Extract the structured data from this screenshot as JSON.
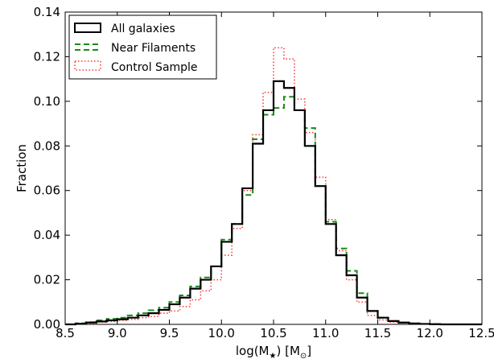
{
  "chart_data": {
    "type": "histogram",
    "title": "",
    "xlabel": "log(M",
    "xlabel_sub": "★",
    "xlabel_tail": ") [M",
    "xlabel_sub2": "⊙",
    "xlabel_end": "]",
    "ylabel": "Fraction",
    "xlim": [
      8.5,
      12.5
    ],
    "ylim": [
      0.0,
      0.14
    ],
    "xticks": [
      "8.5",
      "9.0",
      "9.5",
      "10.0",
      "10.5",
      "11.0",
      "11.5",
      "12.0",
      "12.5"
    ],
    "yticks": [
      "0.00",
      "0.02",
      "0.04",
      "0.06",
      "0.08",
      "0.10",
      "0.12",
      "0.14"
    ],
    "grid": false,
    "legend_position": "top-left",
    "bin_edges": [
      8.5,
      8.6,
      8.7,
      8.8,
      8.9,
      9.0,
      9.1,
      9.2,
      9.3,
      9.4,
      9.5,
      9.6,
      9.7,
      9.8,
      9.9,
      10.0,
      10.1,
      10.2,
      10.3,
      10.4,
      10.5,
      10.6,
      10.7,
      10.8,
      10.9,
      11.0,
      11.1,
      11.2,
      11.3,
      11.4,
      11.5,
      11.6,
      11.7,
      11.8,
      11.9,
      12.0,
      12.1,
      12.2,
      12.3,
      12.4,
      12.5
    ],
    "series": [
      {
        "name": "All galaxies",
        "color": "#000000",
        "style": "solid",
        "values": [
          0.0,
          0.0003,
          0.0008,
          0.0013,
          0.0018,
          0.0023,
          0.003,
          0.004,
          0.005,
          0.0065,
          0.009,
          0.012,
          0.016,
          0.02,
          0.026,
          0.037,
          0.045,
          0.061,
          0.081,
          0.096,
          0.109,
          0.106,
          0.096,
          0.08,
          0.062,
          0.045,
          0.031,
          0.022,
          0.012,
          0.006,
          0.003,
          0.0015,
          0.0008,
          0.0004,
          0.0002,
          0.0001,
          0.0,
          0.0,
          0.0,
          0.0
        ]
      },
      {
        "name": "Near Filaments",
        "color": "#1a8a1a",
        "style": "dashed",
        "values": [
          0.0,
          0.0005,
          0.001,
          0.0018,
          0.0025,
          0.003,
          0.004,
          0.005,
          0.0063,
          0.0075,
          0.01,
          0.013,
          0.017,
          0.021,
          0.026,
          0.038,
          0.045,
          0.058,
          0.083,
          0.094,
          0.097,
          0.102,
          0.096,
          0.088,
          0.062,
          0.046,
          0.034,
          0.024,
          0.014,
          0.006,
          0.003,
          0.0015,
          0.0008,
          0.0004,
          0.0002,
          0.0001,
          0.0,
          0.0,
          0.0,
          0.0
        ]
      },
      {
        "name": "Control Sample",
        "color": "#ff3333",
        "style": "dotted",
        "values": [
          0.0,
          0.0002,
          0.0005,
          0.001,
          0.0013,
          0.0018,
          0.0022,
          0.003,
          0.0035,
          0.005,
          0.006,
          0.008,
          0.011,
          0.015,
          0.02,
          0.031,
          0.043,
          0.06,
          0.085,
          0.104,
          0.124,
          0.119,
          0.101,
          0.086,
          0.066,
          0.047,
          0.033,
          0.02,
          0.01,
          0.004,
          0.002,
          0.001,
          0.0006,
          0.0003,
          0.0001,
          0.0,
          0.0,
          0.0,
          0.0,
          0.0
        ]
      }
    ]
  }
}
